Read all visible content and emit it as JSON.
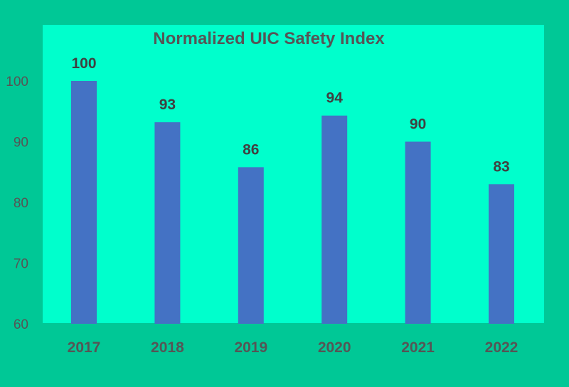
{
  "colors": {
    "background": "#00c896",
    "plot_area": "#00ffcc",
    "bar": "#4472c4",
    "text": "#555555",
    "label_text": "#404040"
  },
  "chart_data": {
    "type": "bar",
    "title": "Normalized UIC Safety Index",
    "xlabel": "",
    "ylabel": "",
    "categories": [
      "2017",
      "2018",
      "2019",
      "2020",
      "2021",
      "2022"
    ],
    "values": [
      100,
      93.2,
      85.8,
      94.3,
      90,
      83
    ],
    "data_labels": [
      "100",
      "93",
      "86",
      "94",
      "90",
      "83"
    ],
    "y_ticks": [
      60,
      70,
      80,
      90,
      100
    ],
    "ylim": [
      60,
      109
    ],
    "grid": false,
    "legend": "none"
  }
}
